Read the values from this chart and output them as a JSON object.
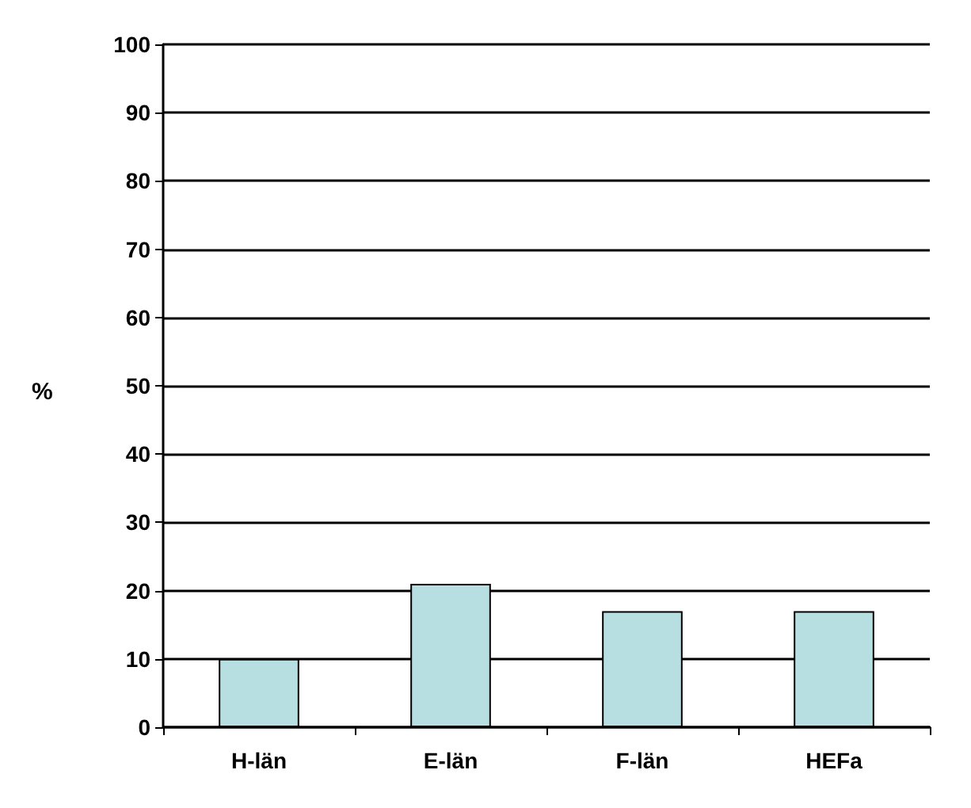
{
  "chart_data": {
    "type": "bar",
    "ylabel": "%",
    "categories": [
      "H-län",
      "E-län",
      "F-län",
      "HEFa"
    ],
    "values": [
      10,
      21,
      17,
      17
    ],
    "color": "#b7dfe2",
    "ylim": [
      0,
      100
    ],
    "yticks": [
      0,
      10,
      20,
      30,
      40,
      50,
      60,
      70,
      80,
      90,
      100
    ],
    "grid": "y"
  }
}
